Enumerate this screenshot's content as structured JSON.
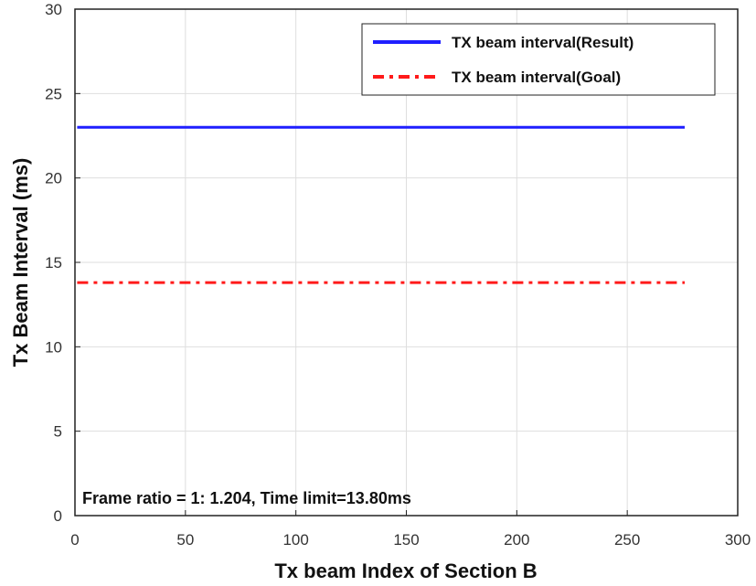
{
  "chart_data": {
    "type": "line",
    "xlabel": "Tx beam Index of Section B",
    "ylabel": "Tx Beam Interval (ms)",
    "xlim": [
      0,
      300
    ],
    "ylim": [
      0,
      30
    ],
    "xticks": [
      0,
      50,
      100,
      150,
      200,
      250,
      300
    ],
    "yticks": [
      0,
      5,
      10,
      15,
      20,
      25,
      30
    ],
    "grid": true,
    "legend_position": "top-right",
    "series": [
      {
        "name": "TX beam interval(Result)",
        "x": [
          1,
          276
        ],
        "y": [
          23.0,
          23.0
        ],
        "color": "#1f1fff",
        "style": "solid"
      },
      {
        "name": "TX beam interval(Goal)",
        "x": [
          1,
          276
        ],
        "y": [
          13.8,
          13.8
        ],
        "color": "#ff1a1a",
        "style": "dash-dot"
      }
    ],
    "annotation": "Frame ratio = 1: 1.204, Time limit=13.80ms"
  }
}
